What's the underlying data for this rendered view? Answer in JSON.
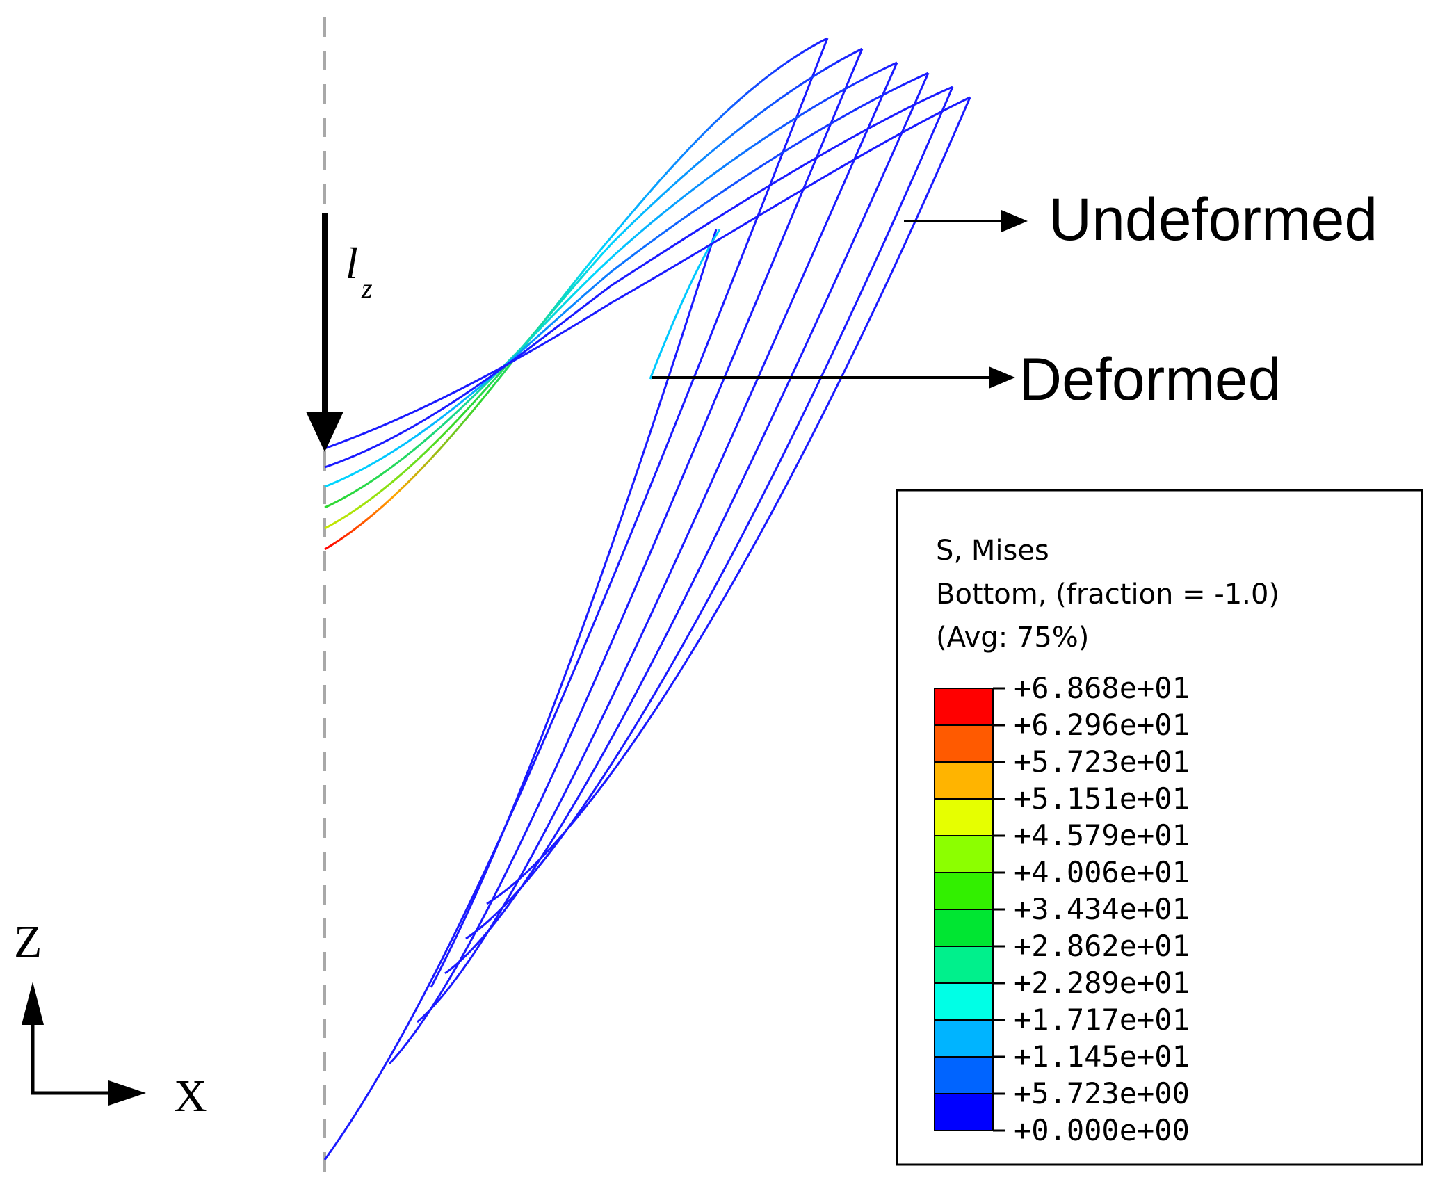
{
  "annotations": {
    "undeformed_label": "Undeformed",
    "deformed_label": "Deformed",
    "load_symbol": "l",
    "load_subscript": "z"
  },
  "axes": {
    "z_label": "Z",
    "x_label": "X"
  },
  "legend": {
    "title_line1": "S, Mises",
    "title_line2": "Bottom, (fraction = -1.0)",
    "title_line3": "(Avg: 75%)",
    "values": [
      "+6.868e+01",
      "+6.296e+01",
      "+5.723e+01",
      "+5.151e+01",
      "+4.579e+01",
      "+4.006e+01",
      "+3.434e+01",
      "+2.862e+01",
      "+2.289e+01",
      "+1.717e+01",
      "+1.145e+01",
      "+5.723e+00",
      "+0.000e+00"
    ],
    "colors": [
      "#ff0000",
      "#ff5a00",
      "#ffb400",
      "#e6ff00",
      "#8cff00",
      "#32f000",
      "#00e632",
      "#00f08c",
      "#00ffe6",
      "#00b4ff",
      "#0064ff",
      "#0000ff"
    ]
  },
  "stress_colors": {
    "low": "#1a1aff",
    "mid_cyan": "#00d8ff",
    "mid_green": "#2fd82f",
    "high_yellow": "#c8e600",
    "high_orange": "#ffa500",
    "peak": "#ff0000"
  }
}
